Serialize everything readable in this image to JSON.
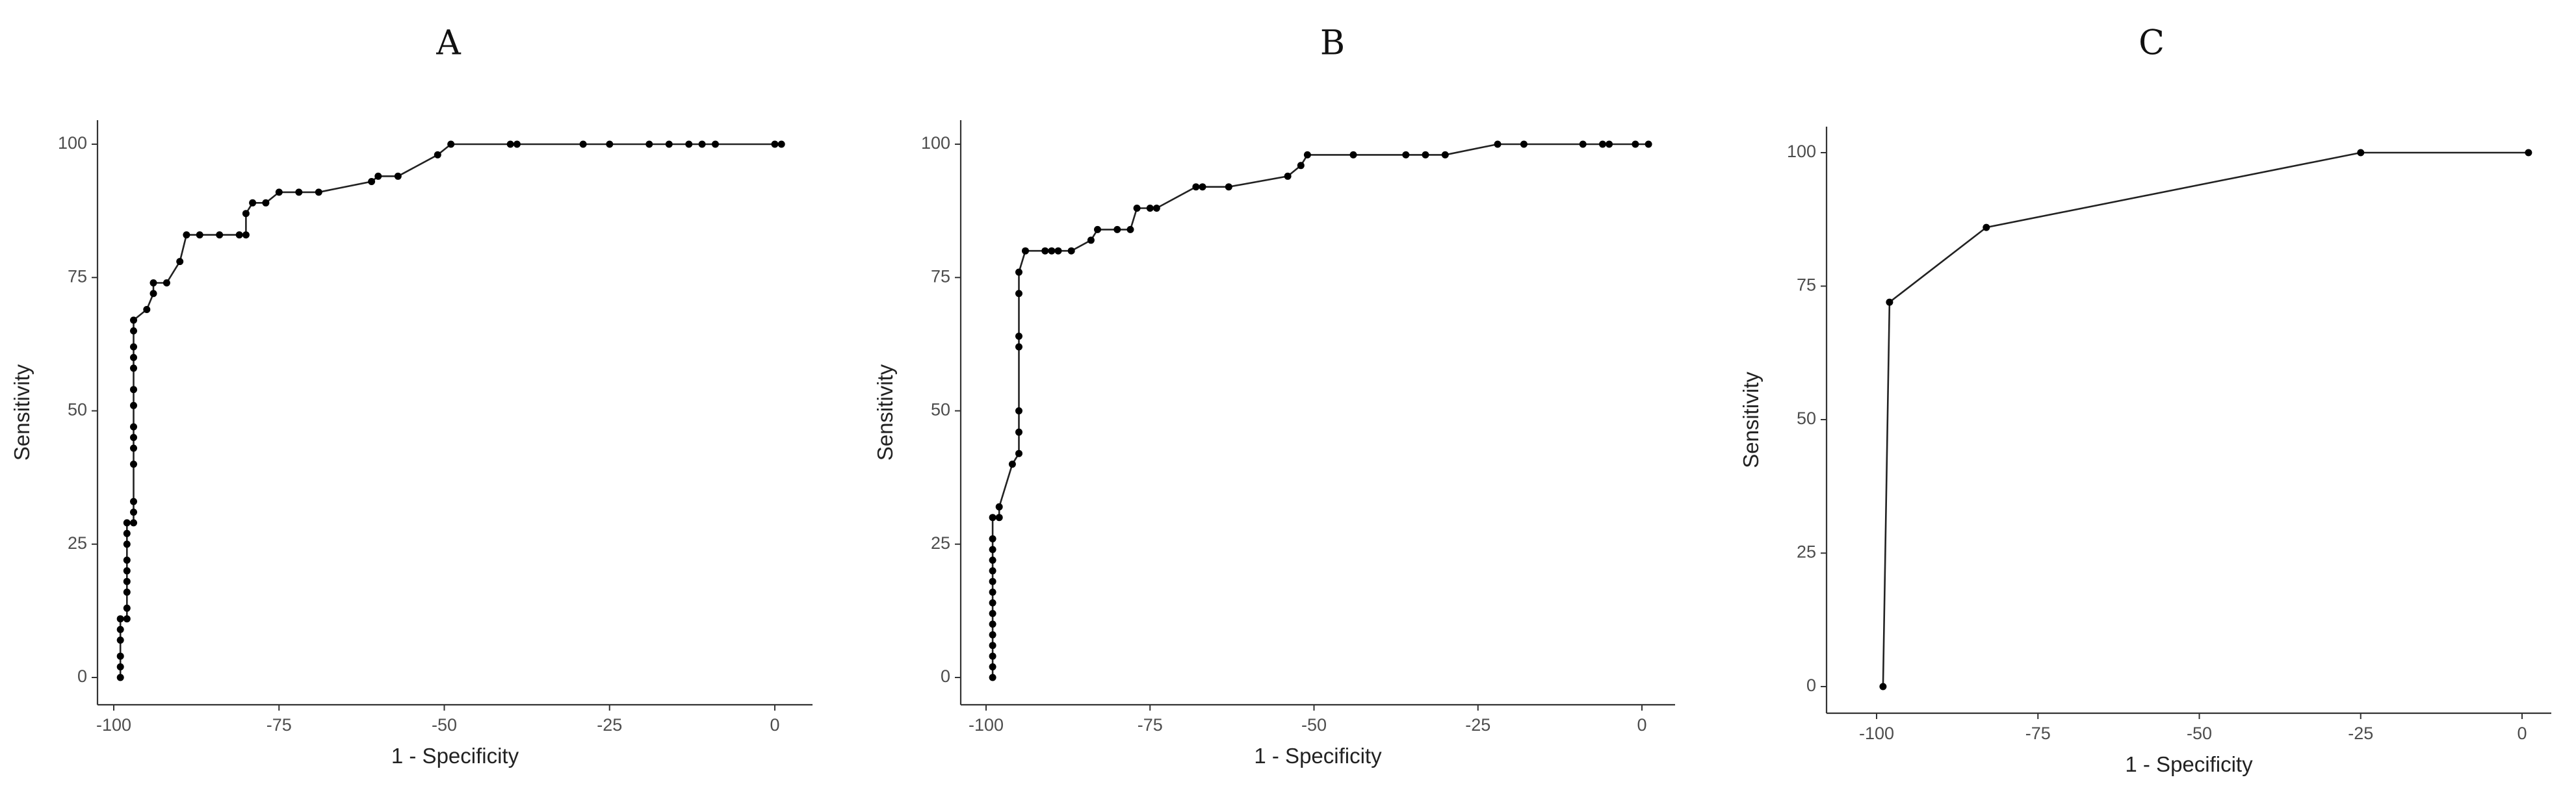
{
  "chart_data": [
    {
      "type": "line",
      "panel_label": "A",
      "xlabel": "1 - Specificity",
      "ylabel": "Sensitivity",
      "xlim": [
        -100,
        0
      ],
      "ylim": [
        0,
        100
      ],
      "x_ticks": [
        -100,
        -75,
        -50,
        -25,
        0
      ],
      "y_ticks": [
        0,
        25,
        50,
        75,
        100
      ],
      "grid": false,
      "series": [
        {
          "points": [
            [
              -99,
              0
            ],
            [
              -99,
              2
            ],
            [
              -99,
              4
            ],
            [
              -99,
              7
            ],
            [
              -99,
              9
            ],
            [
              -99,
              11
            ],
            [
              -98,
              11
            ],
            [
              -98,
              13
            ],
            [
              -98,
              16
            ],
            [
              -98,
              18
            ],
            [
              -98,
              20
            ],
            [
              -98,
              22
            ],
            [
              -98,
              25
            ],
            [
              -98,
              27
            ],
            [
              -98,
              29
            ],
            [
              -97,
              29
            ],
            [
              -97,
              31
            ],
            [
              -97,
              33
            ],
            [
              -97,
              40
            ],
            [
              -97,
              43
            ],
            [
              -97,
              45
            ],
            [
              -97,
              47
            ],
            [
              -97,
              51
            ],
            [
              -97,
              54
            ],
            [
              -97,
              58
            ],
            [
              -97,
              60
            ],
            [
              -97,
              62
            ],
            [
              -97,
              65
            ],
            [
              -97,
              67
            ],
            [
              -95,
              69
            ],
            [
              -94,
              72
            ],
            [
              -94,
              74
            ],
            [
              -92,
              74
            ],
            [
              -90,
              78
            ],
            [
              -89,
              83
            ],
            [
              -87,
              83
            ],
            [
              -84,
              83
            ],
            [
              -81,
              83
            ],
            [
              -80,
              83
            ],
            [
              -80,
              87
            ],
            [
              -79,
              89
            ],
            [
              -77,
              89
            ],
            [
              -75,
              91
            ],
            [
              -72,
              91
            ],
            [
              -69,
              91
            ],
            [
              -61,
              93
            ],
            [
              -60,
              94
            ],
            [
              -57,
              94
            ],
            [
              -51,
              98
            ],
            [
              -49,
              100
            ],
            [
              -40,
              100
            ],
            [
              -39,
              100
            ],
            [
              -29,
              100
            ],
            [
              -25,
              100
            ],
            [
              -19,
              100
            ],
            [
              -16,
              100
            ],
            [
              -13,
              100
            ],
            [
              -11,
              100
            ],
            [
              -9,
              100
            ],
            [
              0,
              100
            ],
            [
              1,
              100
            ]
          ]
        }
      ]
    },
    {
      "type": "line",
      "panel_label": "B",
      "xlabel": "1 - Specificity",
      "ylabel": "Sensitivity",
      "xlim": [
        -100,
        0
      ],
      "ylim": [
        0,
        100
      ],
      "x_ticks": [
        -100,
        -75,
        -50,
        -25,
        0
      ],
      "y_ticks": [
        0,
        25,
        50,
        75,
        100
      ],
      "grid": false,
      "series": [
        {
          "points": [
            [
              -99,
              0
            ],
            [
              -99,
              2
            ],
            [
              -99,
              4
            ],
            [
              -99,
              6
            ],
            [
              -99,
              8
            ],
            [
              -99,
              10
            ],
            [
              -99,
              12
            ],
            [
              -99,
              14
            ],
            [
              -99,
              16
            ],
            [
              -99,
              18
            ],
            [
              -99,
              20
            ],
            [
              -99,
              22
            ],
            [
              -99,
              24
            ],
            [
              -99,
              26
            ],
            [
              -99,
              30
            ],
            [
              -98,
              30
            ],
            [
              -98,
              32
            ],
            [
              -96,
              40
            ],
            [
              -95,
              42
            ],
            [
              -95,
              46
            ],
            [
              -95,
              50
            ],
            [
              -95,
              62
            ],
            [
              -95,
              64
            ],
            [
              -95,
              72
            ],
            [
              -95,
              76
            ],
            [
              -94,
              80
            ],
            [
              -91,
              80
            ],
            [
              -90,
              80
            ],
            [
              -89,
              80
            ],
            [
              -87,
              80
            ],
            [
              -84,
              82
            ],
            [
              -83,
              84
            ],
            [
              -80,
              84
            ],
            [
              -78,
              84
            ],
            [
              -77,
              88
            ],
            [
              -75,
              88
            ],
            [
              -74,
              88
            ],
            [
              -68,
              92
            ],
            [
              -67,
              92
            ],
            [
              -63,
              92
            ],
            [
              -54,
              94
            ],
            [
              -52,
              96
            ],
            [
              -51,
              98
            ],
            [
              -44,
              98
            ],
            [
              -36,
              98
            ],
            [
              -33,
              98
            ],
            [
              -30,
              98
            ],
            [
              -22,
              100
            ],
            [
              -18,
              100
            ],
            [
              -9,
              100
            ],
            [
              -6,
              100
            ],
            [
              -5,
              100
            ],
            [
              -1,
              100
            ],
            [
              1,
              100
            ]
          ]
        }
      ]
    },
    {
      "type": "line",
      "panel_label": "C",
      "xlabel": "1 - Specificity",
      "ylabel": "Sensitivity",
      "xlim": [
        -100,
        0
      ],
      "ylim": [
        0,
        100
      ],
      "x_ticks": [
        -100,
        -75,
        -50,
        -25,
        0
      ],
      "y_ticks": [
        0,
        25,
        50,
        75,
        100
      ],
      "grid": false,
      "series": [
        {
          "points": [
            [
              -99,
              0
            ],
            [
              -98,
              72
            ],
            [
              -83,
              86
            ],
            [
              -25,
              100
            ],
            [
              1,
              100
            ]
          ]
        }
      ]
    }
  ]
}
